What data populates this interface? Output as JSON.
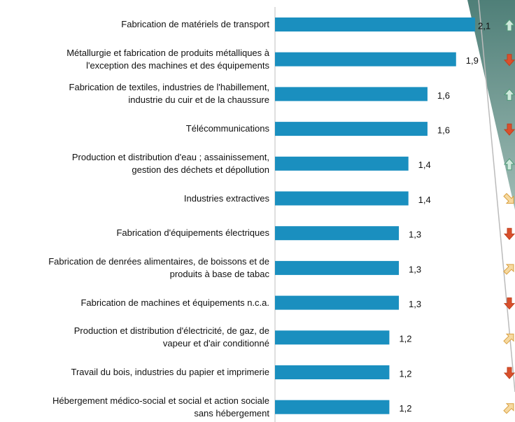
{
  "chart_data": {
    "type": "bar",
    "orientation": "horizontal",
    "color": "#1a8fbf",
    "categories": [
      "Fabrication de matériels de transport",
      "Métallurgie et fabrication de produits métalliques à\nl'exception des machines et des équipements",
      "Fabrication de textiles, industries de l'habillement,\nindustrie du cuir et de la chaussure",
      "Télécommunications",
      "Production et distribution d'eau ; assainissement,\ngestion des déchets et dépollution",
      "Industries extractives",
      "Fabrication d'équipements électriques",
      "Fabrication de denrées alimentaires, de boissons et de\nproduits à base de tabac",
      "Fabrication de machines et équipements n.c.a.",
      "Production et distribution d'électricité, de gaz, de\nvapeur et d'air conditionné",
      "Travail du bois, industries du papier et imprimerie",
      "Hébergement médico-social et social et action sociale\nsans hébergement"
    ],
    "values": [
      2.1,
      1.9,
      1.6,
      1.6,
      1.4,
      1.4,
      1.3,
      1.3,
      1.3,
      1.2,
      1.2,
      1.2
    ],
    "value_labels": [
      "2,1",
      "1,9",
      "1,6",
      "1,6",
      "1,4",
      "1,4",
      "1,3",
      "1,3",
      "1,3",
      "1,2",
      "1,2",
      "1,2"
    ],
    "trends": [
      "up",
      "down",
      "up",
      "down",
      "up",
      "down-right",
      "down",
      "up-right",
      "down",
      "up-right",
      "down",
      "up-right"
    ]
  }
}
